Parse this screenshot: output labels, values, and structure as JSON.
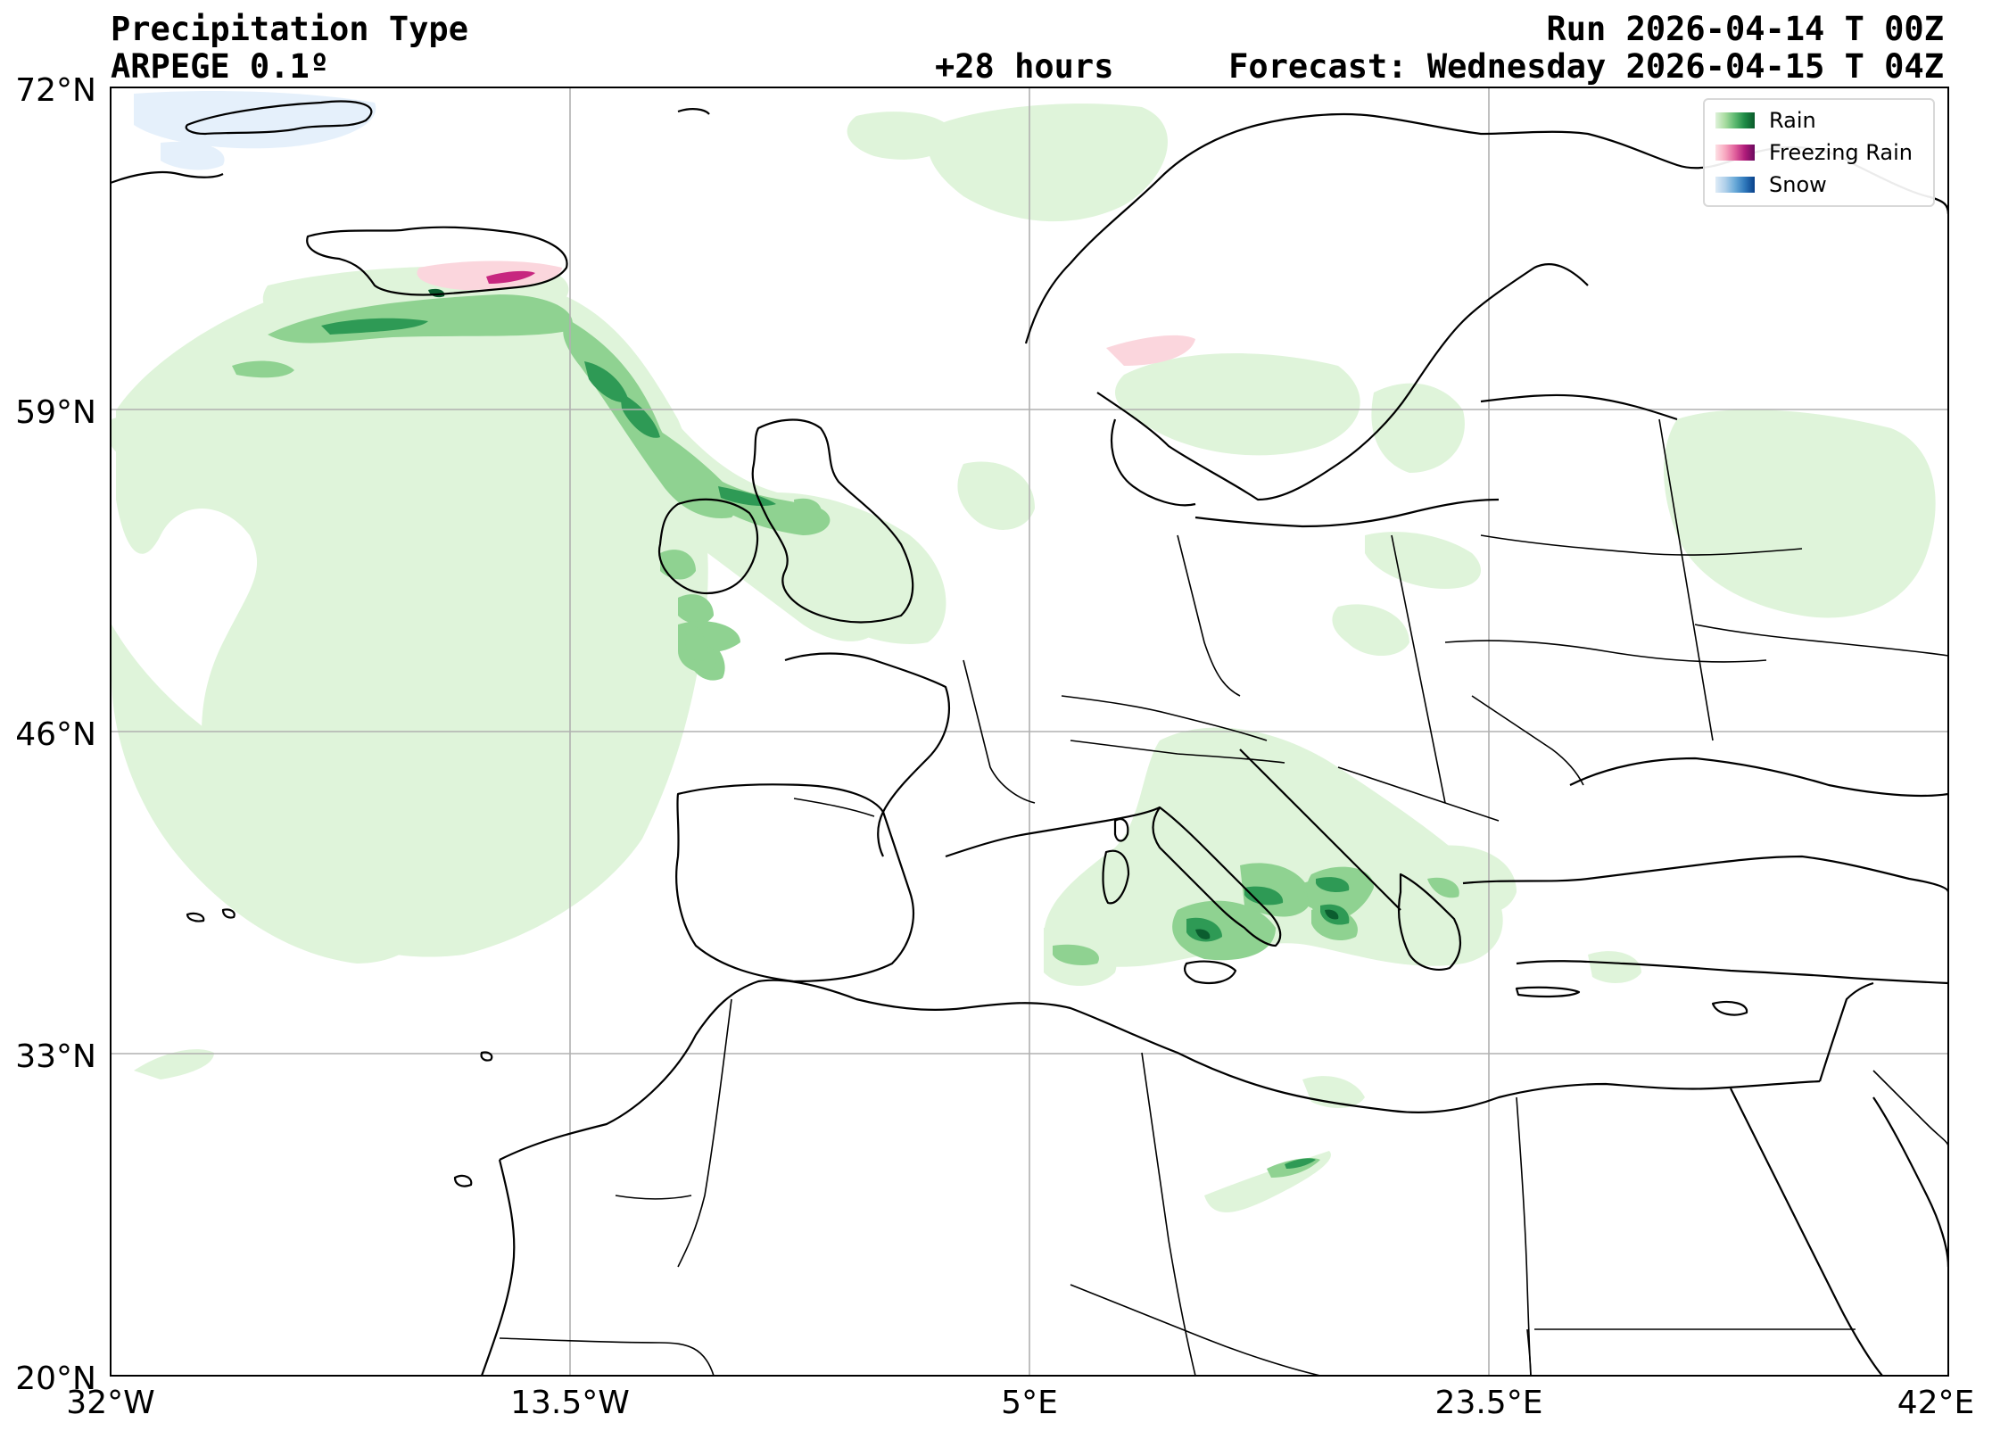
{
  "header": {
    "title": "Precipitation Type",
    "model": "ARPEGE 0.1º",
    "lead": "+28 hours",
    "run": "Run 2026-04-14 T 00Z",
    "forecast": "Forecast: Wednesday 2026-04-15 T 04Z"
  },
  "axes": {
    "lat_ticks": [
      "72°N",
      "59°N",
      "46°N",
      "33°N",
      "20°N"
    ],
    "lon_ticks": [
      "32°W",
      "13.5°W",
      "5°E",
      "23.5°E",
      "42°E"
    ],
    "lat_range": [
      20,
      72
    ],
    "lon_range": [
      -32,
      42
    ],
    "grid": true
  },
  "legend": {
    "placement": "top-right",
    "items": [
      {
        "label": "Rain",
        "colors": [
          "#dff2da",
          "#a8dca0",
          "#5cb870",
          "#1d8a45",
          "#0a5a2a"
        ]
      },
      {
        "label": "Freezing Rain",
        "colors": [
          "#fde0e4",
          "#f8a8c0",
          "#e0609c",
          "#b01c7a",
          "#6a0a5e"
        ]
      },
      {
        "label": "Snow",
        "colors": [
          "#deebf7",
          "#b0d0ea",
          "#6aaad8",
          "#2f78bb",
          "#08408a"
        ]
      }
    ]
  },
  "colors": {
    "rain_light": "#dff4da",
    "rain_mid": "#8fd291",
    "rain_dark": "#2e9a55",
    "rain_darkest": "#0b5d2f",
    "freezing_light": "#fbd6dd",
    "freezing_dark": "#c7267f",
    "snow_light": "#e5f0fb",
    "coast": "#000000",
    "grid": "#b0b0b0"
  }
}
